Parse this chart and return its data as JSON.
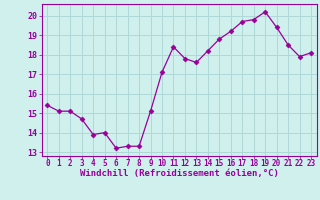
{
  "x": [
    0,
    1,
    2,
    3,
    4,
    5,
    6,
    7,
    8,
    9,
    10,
    11,
    12,
    13,
    14,
    15,
    16,
    17,
    18,
    19,
    20,
    21,
    22,
    23
  ],
  "y": [
    15.4,
    15.1,
    15.1,
    14.7,
    13.9,
    14.0,
    13.2,
    13.3,
    13.3,
    15.1,
    17.1,
    18.4,
    17.8,
    17.6,
    18.2,
    18.8,
    19.2,
    19.7,
    19.8,
    20.2,
    19.4,
    18.5,
    17.9,
    18.1
  ],
  "line_color": "#990099",
  "marker": "D",
  "marker_size": 2.5,
  "bg_color": "#d0f0ee",
  "grid_color": "#b0d8d8",
  "xlabel": "Windchill (Refroidissement éolien,°C)",
  "xlabel_color": "#990099",
  "tick_color": "#990099",
  "label_color": "#990099",
  "spine_color": "#990099",
  "ylim": [
    12.8,
    20.6
  ],
  "xlim": [
    -0.5,
    23.5
  ],
  "yticks": [
    13,
    14,
    15,
    16,
    17,
    18,
    19,
    20
  ],
  "xticks": [
    0,
    1,
    2,
    3,
    4,
    5,
    6,
    7,
    8,
    9,
    10,
    11,
    12,
    13,
    14,
    15,
    16,
    17,
    18,
    19,
    20,
    21,
    22,
    23
  ],
  "xtick_labels": [
    "0",
    "1",
    "2",
    "3",
    "4",
    "5",
    "6",
    "7",
    "8",
    "9",
    "10",
    "11",
    "12",
    "13",
    "14",
    "15",
    "16",
    "17",
    "18",
    "19",
    "20",
    "21",
    "22",
    "23"
  ],
  "ytick_labels": [
    "13",
    "14",
    "15",
    "16",
    "17",
    "18",
    "19",
    "20"
  ]
}
